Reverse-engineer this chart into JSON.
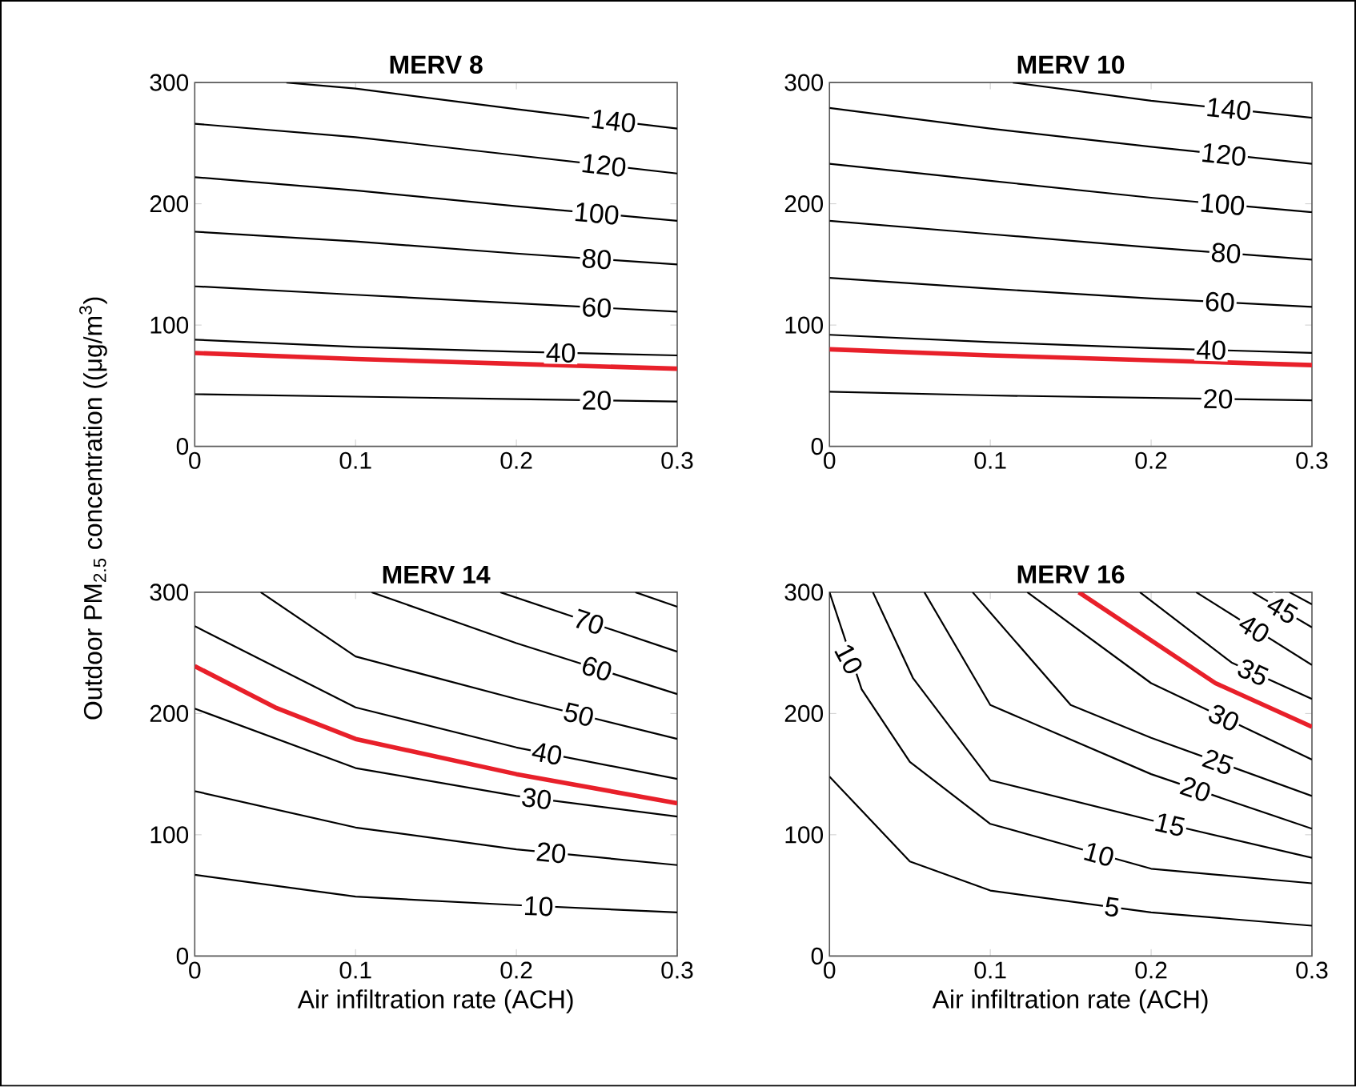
{
  "chart_data": [
    {
      "type": "line",
      "title": "MERV 8",
      "ylabel": "Outdoor PM$_{2.5}$ concentration ((μg/m$^{3}$)",
      "xlim": [
        0,
        0.3
      ],
      "ylim": [
        0,
        300
      ],
      "xticks": [
        0,
        0.1,
        0.2,
        0.3
      ],
      "yticks": [
        0,
        100,
        200,
        300
      ],
      "series": [
        {
          "name": "20",
          "color": "#000000",
          "x": [
            0,
            0.1,
            0.2,
            0.3
          ],
          "values": [
            43,
            41,
            39,
            37
          ]
        },
        {
          "color": "#e8202a",
          "x": [
            0,
            0.1,
            0.2,
            0.3
          ],
          "values": [
            77,
            72,
            68,
            64
          ]
        },
        {
          "name": "40",
          "color": "#000000",
          "x": [
            0,
            0.1,
            0.2,
            0.3
          ],
          "values": [
            88,
            82,
            78,
            75
          ]
        },
        {
          "name": "60",
          "color": "#000000",
          "x": [
            0,
            0.1,
            0.2,
            0.3
          ],
          "values": [
            132,
            125,
            118,
            111
          ]
        },
        {
          "name": "80",
          "color": "#000000",
          "x": [
            0,
            0.1,
            0.2,
            0.3
          ],
          "values": [
            177,
            169,
            159,
            150
          ]
        },
        {
          "name": "100",
          "color": "#000000",
          "x": [
            0,
            0.1,
            0.2,
            0.3
          ],
          "values": [
            222,
            211,
            198,
            186
          ]
        },
        {
          "name": "120",
          "color": "#000000",
          "x": [
            0,
            0.1,
            0.2,
            0.3
          ],
          "values": [
            266,
            255,
            240,
            225
          ]
        },
        {
          "name": "140",
          "color": "#000000",
          "x": [
            0.057,
            0.1,
            0.2,
            0.3
          ],
          "values": [
            300,
            295,
            278,
            262
          ]
        }
      ]
    },
    {
      "type": "line",
      "title": "MERV 10",
      "xlim": [
        0,
        0.3
      ],
      "ylim": [
        0,
        300
      ],
      "xticks": [
        0,
        0.1,
        0.2,
        0.3
      ],
      "yticks": [
        0,
        100,
        200,
        300
      ],
      "series": [
        {
          "name": "20",
          "color": "#000000",
          "x": [
            0,
            0.1,
            0.2,
            0.3
          ],
          "values": [
            45,
            42,
            40,
            38
          ]
        },
        {
          "color": "#e8202a",
          "x": [
            0,
            0.1,
            0.2,
            0.3
          ],
          "values": [
            80,
            75,
            71,
            67
          ]
        },
        {
          "name": "40",
          "color": "#000000",
          "x": [
            0,
            0.1,
            0.2,
            0.3
          ],
          "values": [
            92,
            86,
            81,
            77
          ]
        },
        {
          "name": "60",
          "color": "#000000",
          "x": [
            0,
            0.1,
            0.2,
            0.3
          ],
          "values": [
            139,
            130,
            122,
            115
          ]
        },
        {
          "name": "80",
          "color": "#000000",
          "x": [
            0,
            0.1,
            0.2,
            0.3
          ],
          "values": [
            186,
            175,
            164,
            154
          ]
        },
        {
          "name": "100",
          "color": "#000000",
          "x": [
            0,
            0.1,
            0.2,
            0.3
          ],
          "values": [
            233,
            219,
            205,
            193
          ]
        },
        {
          "name": "120",
          "color": "#000000",
          "x": [
            0,
            0.1,
            0.2,
            0.3
          ],
          "values": [
            279,
            262,
            247,
            233
          ]
        },
        {
          "name": "140",
          "color": "#000000",
          "x": [
            0.114,
            0.2,
            0.3
          ],
          "values": [
            300,
            285,
            271
          ]
        }
      ]
    },
    {
      "type": "line",
      "title": "MERV 14",
      "xlabel": "Air infiltration rate (ACH)",
      "xlim": [
        0,
        0.3
      ],
      "ylim": [
        0,
        300
      ],
      "xticks": [
        0,
        0.1,
        0.2,
        0.3
      ],
      "yticks": [
        0,
        100,
        200,
        300
      ],
      "series": [
        {
          "name": "10",
          "color": "#000000",
          "x": [
            0,
            0.1,
            0.2,
            0.3
          ],
          "values": [
            67,
            49,
            42,
            36
          ]
        },
        {
          "name": "20",
          "color": "#000000",
          "x": [
            0,
            0.1,
            0.2,
            0.3
          ],
          "values": [
            136,
            106,
            88,
            75
          ]
        },
        {
          "name": "30",
          "color": "#000000",
          "x": [
            0,
            0.1,
            0.2,
            0.3
          ],
          "values": [
            204,
            155,
            132,
            115
          ]
        },
        {
          "color": "#e8202a",
          "x": [
            0,
            0.05,
            0.1,
            0.2,
            0.3
          ],
          "values": [
            239,
            205,
            179,
            150,
            126
          ]
        },
        {
          "name": "40",
          "color": "#000000",
          "x": [
            0,
            0.1,
            0.2,
            0.3
          ],
          "values": [
            272,
            205,
            172,
            146
          ]
        },
        {
          "name": "50",
          "color": "#000000",
          "x": [
            0.041,
            0.1,
            0.2,
            0.3
          ],
          "values": [
            300,
            247,
            212,
            179
          ]
        },
        {
          "name": "60",
          "color": "#000000",
          "x": [
            0.11,
            0.2,
            0.3
          ],
          "values": [
            300,
            258,
            216
          ]
        },
        {
          "name": "70",
          "color": "#000000",
          "x": [
            0.19,
            0.3
          ],
          "values": [
            300,
            251
          ]
        },
        {
          "color": "#000000",
          "x": [
            0.274,
            0.3
          ],
          "values": [
            300,
            288
          ]
        }
      ]
    },
    {
      "type": "line",
      "title": "MERV 16",
      "xlabel": "Air infiltration rate (ACH)",
      "xlim": [
        0,
        0.3
      ],
      "ylim": [
        0,
        300
      ],
      "xticks": [
        0,
        0.1,
        0.2,
        0.3
      ],
      "yticks": [
        0,
        100,
        200,
        300
      ],
      "annotations": [
        {
          "text": "10",
          "x": 0.012,
          "y": 245
        }
      ],
      "series": [
        {
          "name": "5",
          "color": "#000000",
          "x": [
            0,
            0.05,
            0.1,
            0.2,
            0.3
          ],
          "values": [
            148,
            78,
            54,
            36,
            25
          ]
        },
        {
          "name": "10",
          "color": "#000000",
          "x": [
            0,
            0.02,
            0.05,
            0.1,
            0.2,
            0.3
          ],
          "values": [
            300,
            220,
            160,
            109,
            72,
            60
          ]
        },
        {
          "name": "15",
          "color": "#000000",
          "x": [
            0.027,
            0.052,
            0.1,
            0.2,
            0.3
          ],
          "values": [
            300,
            229,
            145,
            112,
            81
          ]
        },
        {
          "name": "20",
          "color": "#000000",
          "x": [
            0.059,
            0.1,
            0.2,
            0.3
          ],
          "values": [
            300,
            207,
            150,
            105
          ]
        },
        {
          "name": "25",
          "color": "#000000",
          "x": [
            0.089,
            0.15,
            0.2,
            0.3
          ],
          "values": [
            300,
            207,
            180,
            132
          ]
        },
        {
          "name": "30",
          "color": "#000000",
          "x": [
            0.123,
            0.2,
            0.3
          ],
          "values": [
            300,
            225,
            162
          ]
        },
        {
          "color": "#e8202a",
          "x": [
            0.155,
            0.24,
            0.3
          ],
          "values": [
            300,
            225,
            189
          ]
        },
        {
          "name": "35",
          "color": "#000000",
          "x": [
            0.193,
            0.25,
            0.3
          ],
          "values": [
            300,
            242,
            212
          ]
        },
        {
          "name": "40",
          "color": "#000000",
          "x": [
            0.228,
            0.3
          ],
          "values": [
            300,
            240
          ]
        },
        {
          "name": "45",
          "color": "#000000",
          "x": [
            0.263,
            0.3
          ],
          "values": [
            300,
            271
          ]
        },
        {
          "color": "#000000",
          "x": [
            0.286,
            0.3
          ],
          "values": [
            300,
            290
          ]
        }
      ]
    }
  ]
}
